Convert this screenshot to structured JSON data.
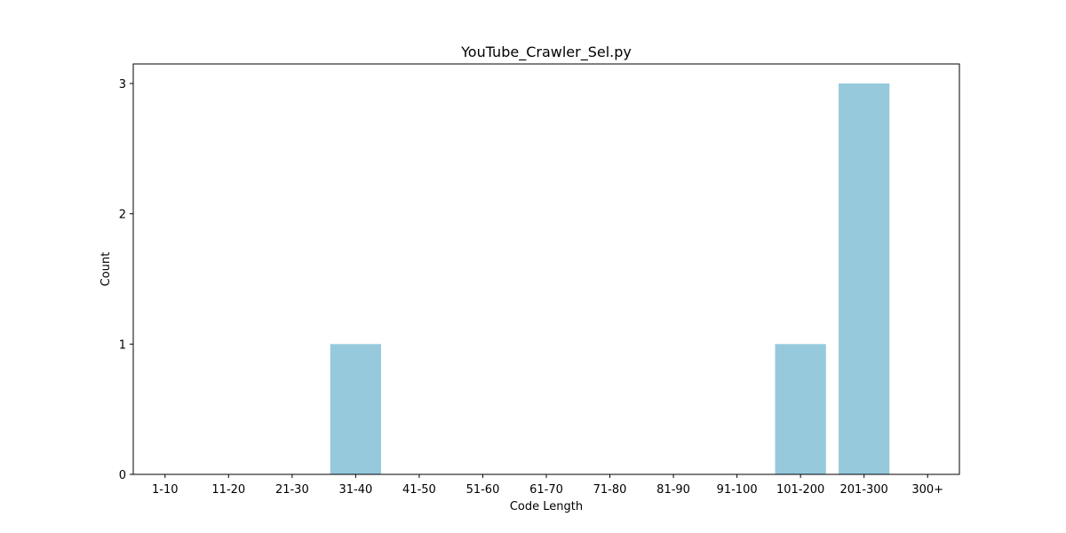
{
  "chart_data": {
    "type": "bar",
    "title": "YouTube_Crawler_Sel.py",
    "xlabel": "Code Length",
    "ylabel": "Count",
    "categories": [
      "1-10",
      "11-20",
      "21-30",
      "31-40",
      "41-50",
      "51-60",
      "61-70",
      "71-80",
      "81-90",
      "91-100",
      "101-200",
      "201-300",
      "300+"
    ],
    "values": [
      0,
      0,
      0,
      1,
      0,
      0,
      0,
      0,
      0,
      0,
      1,
      3,
      0
    ],
    "ylim": [
      0,
      3.15
    ],
    "yticks": [
      0,
      1,
      2,
      3
    ],
    "bar_color": "#96c9dc",
    "grid": false,
    "legend": "none"
  }
}
